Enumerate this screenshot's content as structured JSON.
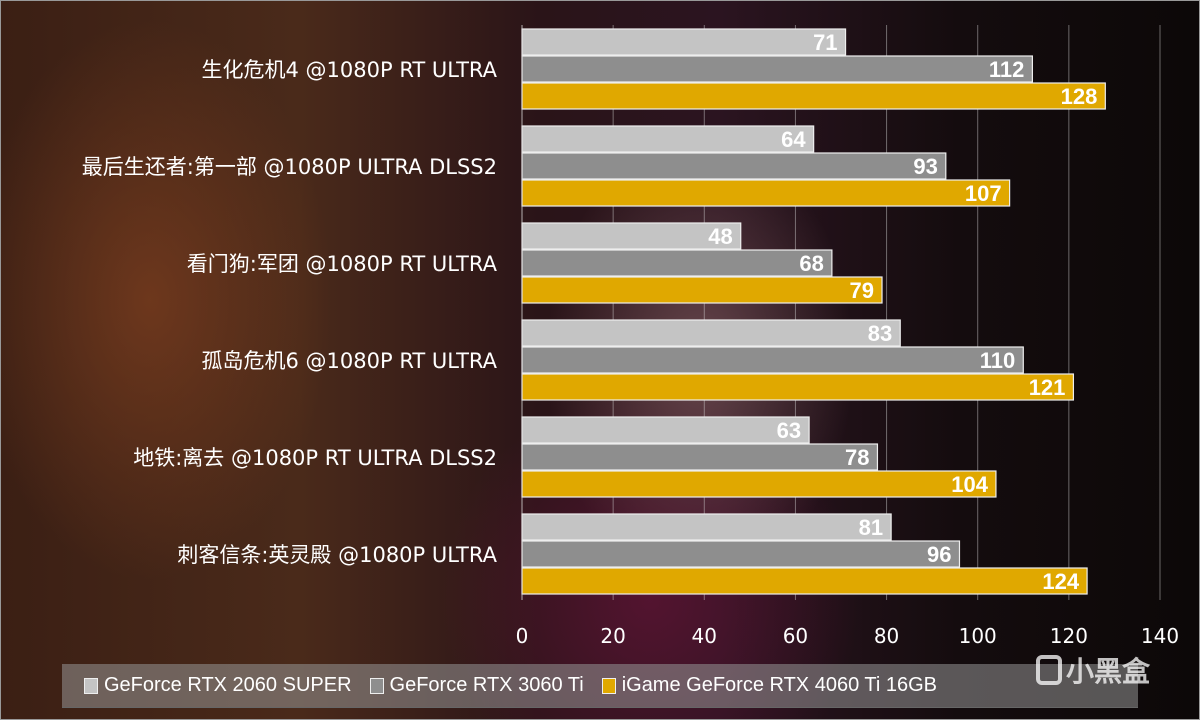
{
  "chart_data": {
    "type": "bar",
    "orientation": "horizontal",
    "categories": [
      "生化危机4 @1080P RT ULTRA",
      "最后生还者:第一部 @1080P ULTRA DLSS2",
      "看门狗:军团 @1080P RT ULTRA",
      "孤岛危机6 @1080P RT ULTRA",
      "地铁:离去 @1080P RT ULTRA DLSS2",
      "刺客信条:英灵殿 @1080P ULTRA"
    ],
    "series": [
      {
        "name": "GeForce RTX 2060 SUPER",
        "color": "#c4c4c4",
        "values": [
          71,
          64,
          48,
          83,
          63,
          81
        ]
      },
      {
        "name": "GeForce RTX 3060 Ti",
        "color": "#8e8e8e",
        "values": [
          112,
          93,
          68,
          110,
          78,
          96
        ]
      },
      {
        "name": "iGame GeForce RTX 4060 Ti 16GB",
        "color": "#e0a800",
        "values": [
          128,
          107,
          79,
          121,
          104,
          124
        ]
      }
    ],
    "xlim": [
      0,
      140
    ],
    "xticks": [
      "0",
      "20",
      "40",
      "60",
      "80",
      "100",
      "120",
      "140"
    ],
    "grid": true,
    "legend": "bottom"
  },
  "watermark": "小黑盒"
}
